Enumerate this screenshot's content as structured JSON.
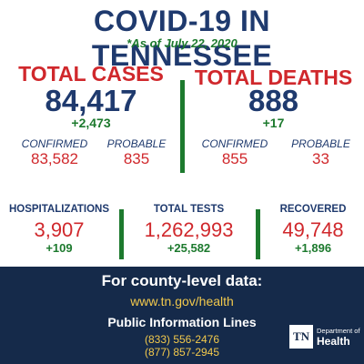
{
  "header": {
    "title": "COVID-19 IN TENNESSEE",
    "as_of": "*As of July 22, 2020"
  },
  "cases": {
    "label": "TOTAL CASES",
    "total": "84,417",
    "delta": "+2,473",
    "confirmed_label": "CONFIRMED",
    "confirmed": "83,582",
    "probable_label": "PROBABLE",
    "probable": "835"
  },
  "deaths": {
    "label": "TOTAL DEATHS",
    "total": "888",
    "delta": "+17",
    "confirmed_label": "CONFIRMED",
    "confirmed": "855",
    "probable_label": "PROBABLE",
    "probable": "33"
  },
  "hospitalizations": {
    "label": "HOSPITALIZATIONS",
    "value": "3,907",
    "delta": "+109"
  },
  "tests": {
    "label": "TOTAL TESTS",
    "value": "1,262,993",
    "delta": "+25,582"
  },
  "recovered": {
    "label": "RECOVERED",
    "value": "49,748",
    "delta": "+1,896"
  },
  "footer": {
    "heading": "For county-level data:",
    "url": "www.tn.gov/health",
    "lines_heading": "Public Information Lines",
    "phone1": "(833) 556-2476",
    "phone2": "(877) 857-2945"
  },
  "logo": {
    "mark": "TN",
    "department": "Department of",
    "health": "Health"
  },
  "colors": {
    "navy": "#1f3a6e",
    "red": "#d0282c",
    "green": "#1d7a2e",
    "footer_bg": "#152a4a",
    "gold": "#f2c94c"
  }
}
